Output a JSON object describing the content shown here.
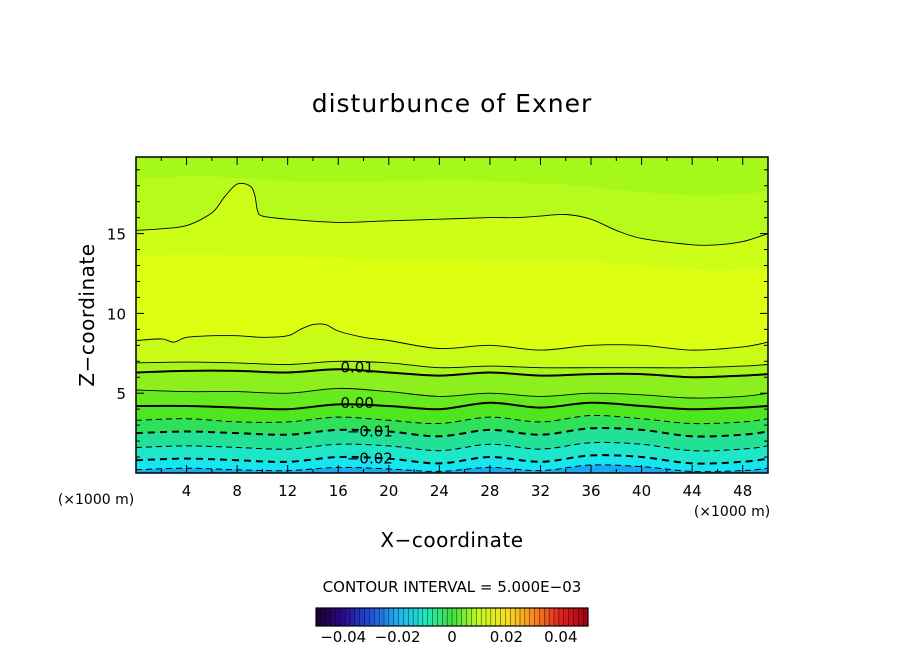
{
  "chart_data": {
    "type": "heatmap",
    "title": "disturbunce of Exner",
    "xlabel": "X−coordinate",
    "ylabel": "Z−coordinate",
    "x_unit": "(×1000 m)",
    "y_unit": "(×1000 m)",
    "xlim": [
      0,
      50
    ],
    "ylim": [
      0,
      19.8
    ],
    "x_ticks": [
      4,
      8,
      12,
      16,
      20,
      24,
      28,
      32,
      36,
      40,
      44,
      48
    ],
    "y_ticks": [
      5,
      10,
      15
    ],
    "contour_interval_label": "CONTOUR INTERVAL = 5.000E−03",
    "contour_labels": [
      {
        "text": "0.01",
        "x": 17.5,
        "z": 6.6
      },
      {
        "text": "0.00",
        "x": 17.5,
        "z": 4.4
      },
      {
        "text": "−0.01",
        "x": 18.5,
        "z": 2.6
      },
      {
        "text": "−0.02",
        "x": 18.5,
        "z": 0.9
      }
    ],
    "contours": [
      {
        "level": 0.015,
        "style": "thin",
        "x": [
          0,
          2,
          4,
          6,
          7,
          8,
          9,
          9.4,
          9.6,
          10,
          12,
          16,
          20,
          24,
          28,
          30,
          32,
          34,
          36,
          38,
          40,
          44,
          46,
          48,
          50
        ],
        "z": [
          15.2,
          15.3,
          15.5,
          16.3,
          17.3,
          18.1,
          18,
          17.4,
          16.5,
          16.1,
          15.9,
          15.7,
          15.8,
          15.9,
          16,
          16,
          16.1,
          16.2,
          15.9,
          15.2,
          14.7,
          14.3,
          14.3,
          14.5,
          15.0
        ]
      },
      {
        "level": 0.01,
        "style": "thin",
        "x": [
          0,
          2,
          3,
          4,
          6,
          8,
          10,
          12,
          13,
          14,
          15,
          16,
          18,
          20,
          24,
          28,
          32,
          36,
          40,
          44,
          48,
          50
        ],
        "z": [
          8.3,
          8.4,
          8.2,
          8.5,
          8.6,
          8.6,
          8.5,
          8.6,
          9.0,
          9.3,
          9.3,
          8.9,
          8.5,
          8.3,
          7.8,
          8.0,
          7.7,
          8.0,
          8.0,
          7.7,
          7.9,
          8.2
        ]
      },
      {
        "level": 0.005,
        "style": "thin",
        "x": [
          0,
          4,
          8,
          12,
          16,
          20,
          24,
          28,
          32,
          36,
          40,
          44,
          48,
          50
        ],
        "z": [
          6.9,
          6.95,
          6.9,
          6.8,
          7.0,
          6.9,
          6.6,
          6.7,
          6.6,
          6.6,
          6.6,
          6.6,
          6.7,
          6.8
        ]
      },
      {
        "level": 0.01,
        "style": "bold",
        "x": [
          0,
          4,
          8,
          12,
          16,
          20,
          24,
          28,
          32,
          36,
          40,
          44,
          48,
          50
        ],
        "z": [
          6.3,
          6.4,
          6.4,
          6.3,
          6.5,
          6.3,
          6.1,
          6.3,
          6.1,
          6.2,
          6.2,
          6.0,
          6.1,
          6.2
        ]
      },
      {
        "level": 0.005,
        "style": "thin",
        "x": [
          0,
          4,
          8,
          12,
          16,
          20,
          24,
          28,
          32,
          36,
          40,
          44,
          48,
          50
        ],
        "z": [
          5.2,
          5.1,
          5.1,
          5.0,
          5.3,
          5.1,
          4.8,
          5.0,
          4.8,
          5.0,
          4.9,
          4.7,
          4.8,
          5.0
        ]
      },
      {
        "level": 0.0,
        "style": "bold",
        "x": [
          0,
          4,
          8,
          12,
          16,
          20,
          24,
          28,
          32,
          36,
          40,
          44,
          48,
          50
        ],
        "z": [
          4.2,
          4.2,
          4.1,
          4.0,
          4.3,
          4.2,
          4.0,
          4.4,
          4.1,
          4.4,
          4.2,
          4.0,
          4.1,
          4.2
        ]
      },
      {
        "level": -0.005,
        "style": "dash",
        "x": [
          0,
          4,
          8,
          12,
          16,
          20,
          24,
          28,
          32,
          36,
          40,
          44,
          48,
          50
        ],
        "z": [
          3.3,
          3.4,
          3.2,
          3.2,
          3.5,
          3.3,
          3.1,
          3.5,
          3.2,
          3.6,
          3.4,
          3.1,
          3.2,
          3.4
        ]
      },
      {
        "level": -0.01,
        "style": "dash-bold",
        "x": [
          0,
          4,
          8,
          12,
          16,
          20,
          24,
          28,
          32,
          36,
          40,
          44,
          48,
          50
        ],
        "z": [
          2.5,
          2.6,
          2.5,
          2.4,
          2.7,
          2.6,
          2.3,
          2.7,
          2.4,
          2.8,
          2.7,
          2.3,
          2.4,
          2.6
        ]
      },
      {
        "level": -0.015,
        "style": "dash",
        "x": [
          0,
          4,
          8,
          12,
          16,
          20,
          24,
          28,
          32,
          36,
          40,
          44,
          48,
          50
        ],
        "z": [
          1.6,
          1.7,
          1.6,
          1.5,
          1.8,
          1.7,
          1.4,
          1.8,
          1.5,
          1.9,
          1.8,
          1.4,
          1.5,
          1.7
        ]
      },
      {
        "level": -0.02,
        "style": "dash-bold",
        "x": [
          0,
          4,
          8,
          12,
          16,
          20,
          24,
          28,
          32,
          36,
          40,
          44,
          48,
          50
        ],
        "z": [
          0.8,
          0.9,
          0.8,
          0.7,
          1.0,
          0.9,
          0.6,
          1.0,
          0.7,
          1.1,
          1.0,
          0.6,
          0.7,
          0.9
        ]
      },
      {
        "level": -0.025,
        "style": "dash",
        "x": [
          0,
          4,
          8,
          12,
          16,
          20,
          24,
          28,
          32,
          36,
          40,
          44,
          48,
          50
        ],
        "z": [
          0.2,
          0.3,
          0.2,
          0.15,
          0.35,
          0.25,
          0.1,
          0.35,
          0.15,
          0.5,
          0.4,
          0.1,
          0.15,
          0.3
        ]
      }
    ],
    "fill_bands": [
      {
        "level": 0.025,
        "color": "#a6f81a"
      },
      {
        "level": 0.02,
        "color": "#b6fb1c"
      },
      {
        "level": 0.015,
        "color": "#cdfe18"
      },
      {
        "level": 0.01,
        "color": "#ddff12"
      },
      {
        "level": 0.005,
        "color": "#8cf01e"
      },
      {
        "level": 0.0,
        "color": "#4ee61e"
      },
      {
        "level": -0.005,
        "color": "#2ee05a"
      },
      {
        "level": -0.01,
        "color": "#22e096"
      },
      {
        "level": -0.015,
        "color": "#1ee6c8"
      },
      {
        "level": -0.02,
        "color": "#16e6ef"
      },
      {
        "level": -0.025,
        "color": "#18cdf4"
      },
      {
        "level": -0.03,
        "color": "#1aaaf4"
      }
    ],
    "colorbar": {
      "ticks": [
        "−0.04",
        "−0.02",
        "0",
        "0.02",
        "0.04"
      ],
      "tick_values": [
        -0.04,
        -0.02,
        0,
        0.02,
        0.04
      ],
      "range": [
        -0.05,
        0.05
      ],
      "stops": [
        "#1a0033",
        "#2a0a8a",
        "#2050d8",
        "#20b0f0",
        "#20e8c0",
        "#40e040",
        "#c8f820",
        "#f8e020",
        "#f88a20",
        "#e02020",
        "#a00010"
      ]
    }
  }
}
